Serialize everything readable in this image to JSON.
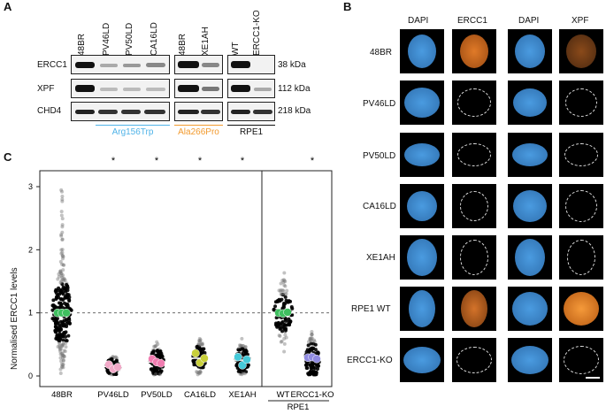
{
  "panels": {
    "a": "A",
    "b": "B",
    "c": "C"
  },
  "western": {
    "lanes": [
      "48BR",
      "PV46LD",
      "PV50LD",
      "CA16LD",
      "48BR",
      "XE1AH",
      "WT",
      "ERCC1-KO"
    ],
    "rows": [
      {
        "name": "ERCC1",
        "kda": "38 kDa"
      },
      {
        "name": "XPF",
        "kda": "112 kDa"
      },
      {
        "name": "CHD4",
        "kda": "218 kDa"
      }
    ],
    "groups": [
      {
        "label": "Arg156Trp",
        "color": "#4fb3e8"
      },
      {
        "label": "Ala266Pro",
        "color": "#f29a2e"
      },
      {
        "label": "RPE1",
        "color": "#111111"
      }
    ]
  },
  "microscopy": {
    "columns": [
      {
        "label": "DAPI"
      },
      {
        "label": "ERCC1"
      },
      {
        "label": "DAPI"
      },
      {
        "label": "XPF"
      }
    ],
    "rows": [
      "48BR",
      "PV46LD",
      "PV50LD",
      "CA16LD",
      "XE1AH",
      "RPE1 WT",
      "ERCC1-KO"
    ]
  },
  "chart_data": {
    "type": "scatter",
    "ylabel": "Normalised ERCC1 levels",
    "ylim": [
      0,
      3
    ],
    "yticks": [
      "0",
      "1",
      "2",
      "3"
    ],
    "categories": [
      "48BR",
      "PV46LD",
      "PV50LD",
      "CA16LD",
      "XE1AH",
      "WT",
      "ERCC1-KO"
    ],
    "group_label": "RPE1",
    "reference_line": 1,
    "significance": [
      "",
      "*",
      "*",
      "*",
      "*",
      "",
      "*"
    ],
    "medians": [
      1.0,
      0.15,
      0.22,
      0.28,
      0.25,
      1.0,
      0.27
    ],
    "replicate_means": [
      [
        1.0,
        1.0,
        1.0
      ],
      [
        0.18,
        0.11,
        0.14
      ],
      [
        0.27,
        0.22,
        0.2
      ],
      [
        0.36,
        0.21,
        0.28
      ],
      [
        0.3,
        0.17,
        0.26
      ],
      [
        1.0,
        0.99,
        1.01
      ],
      [
        0.29,
        0.3,
        0.27
      ]
    ],
    "colors": [
      "#3fbf5f",
      "#f2a9c8",
      "#f07cb0",
      "#c8cf3a",
      "#45c9d8",
      "#3fbf5f",
      "#8f8ae0"
    ]
  }
}
